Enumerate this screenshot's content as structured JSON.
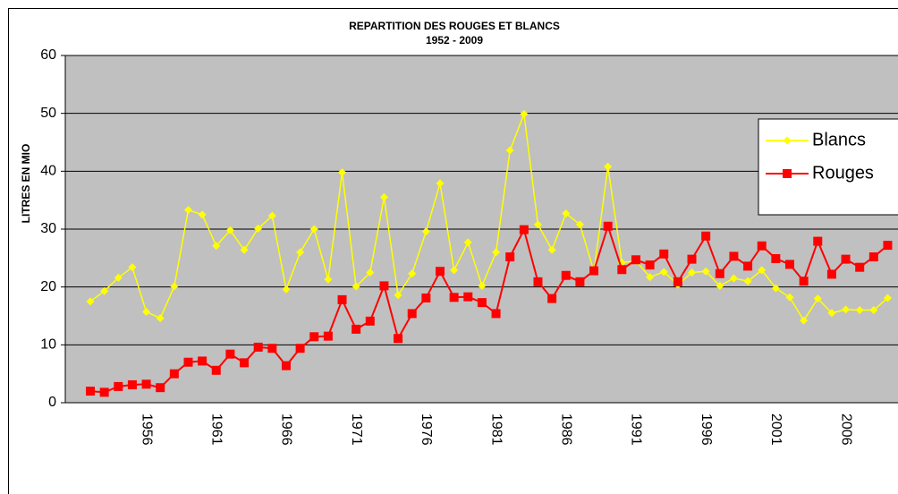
{
  "chart_data": {
    "type": "line",
    "title": "REPARTITION DES ROUGES ET BLANCS",
    "subtitle": "1952 - 2009",
    "y_label": "LITRES EN MIO",
    "categories": [
      null,
      null,
      null,
      null,
      "1956",
      null,
      null,
      null,
      null,
      "1961",
      null,
      null,
      null,
      null,
      "1966",
      null,
      null,
      null,
      null,
      "1971",
      null,
      null,
      null,
      null,
      "1976",
      null,
      null,
      null,
      null,
      "1981",
      null,
      null,
      null,
      null,
      "1986",
      null,
      null,
      null,
      null,
      "1991",
      null,
      null,
      null,
      null,
      "1996",
      null,
      null,
      null,
      null,
      "2001",
      null,
      null,
      null,
      null,
      "2006",
      null,
      null,
      null
    ],
    "series": [
      {
        "name": "Blancs",
        "color": "#ffff00",
        "values": [
          17.5,
          19.3,
          21.6,
          23.4,
          15.7,
          14.6,
          20.1,
          33.3,
          32.5,
          27.1,
          29.8,
          26.4,
          30.1,
          32.3,
          19.6,
          26.0,
          30.0,
          21.3,
          39.8,
          20.1,
          22.5,
          35.5,
          18.6,
          22.3,
          29.6,
          37.9,
          22.9,
          27.7,
          20.2,
          26.0,
          43.6,
          49.9,
          30.8,
          26.4,
          32.7,
          30.8,
          22.7,
          40.8,
          24.2,
          24.5,
          21.7,
          22.6,
          20.4,
          22.5,
          22.7,
          20.2,
          21.5,
          21.0,
          22.9,
          19.8,
          18.2,
          14.2,
          18.0,
          15.5,
          16.1,
          16.0,
          16.0,
          18.1
        ]
      },
      {
        "name": "Rouges",
        "color": "#ff0000",
        "values": [
          2.0,
          1.8,
          2.8,
          3.1,
          3.2,
          2.6,
          5.0,
          7.0,
          7.2,
          5.6,
          8.4,
          6.9,
          9.6,
          9.4,
          6.4,
          9.4,
          11.4,
          11.5,
          17.8,
          12.7,
          14.1,
          20.2,
          11.1,
          15.4,
          18.1,
          22.7,
          18.2,
          18.3,
          17.3,
          15.4,
          25.2,
          29.9,
          20.9,
          18.0,
          22.0,
          20.9,
          22.8,
          30.5,
          23.0,
          24.7,
          23.8,
          25.7,
          20.9,
          24.8,
          28.8,
          22.3,
          25.3,
          23.6,
          27.1,
          24.9,
          23.9,
          21.0,
          27.9,
          22.2,
          24.8,
          23.4,
          25.2,
          27.2
        ]
      }
    ],
    "ylim": [
      0,
      60
    ],
    "yticks": [
      0,
      10,
      20,
      30,
      40,
      50,
      60
    ],
    "grid": true,
    "legend": "right"
  }
}
